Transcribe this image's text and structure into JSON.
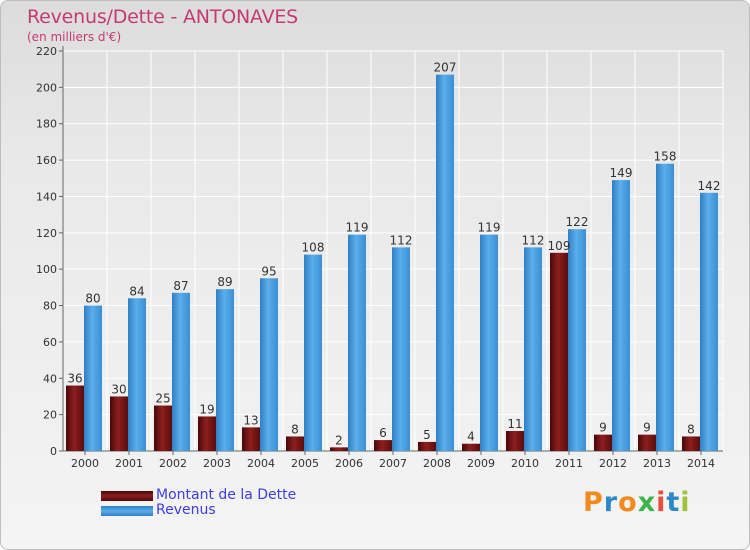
{
  "title": "Revenus/Dette - ANTONAVES",
  "subtitle": "(en milliers d'€)",
  "logo": {
    "text": "Proxiti",
    "colors": [
      "#f28a1e",
      "#2d88c9",
      "#f28a1e",
      "#3bb54a",
      "#e94e3c",
      "#2d88c9",
      "#9bc43a"
    ]
  },
  "chart_data": {
    "type": "bar",
    "categories": [
      "2000",
      "2001",
      "2002",
      "2003",
      "2004",
      "2005",
      "2006",
      "2007",
      "2008",
      "2009",
      "2010",
      "2011",
      "2012",
      "2013",
      "2014"
    ],
    "series": [
      {
        "name": "Montant de la Dette",
        "color": "#7a1515",
        "values": [
          36,
          30,
          25,
          19,
          13,
          8,
          2,
          6,
          5,
          4,
          11,
          109,
          9,
          9,
          8
        ]
      },
      {
        "name": "Revenus",
        "color": "#4aa0e6",
        "values": [
          80,
          84,
          87,
          89,
          95,
          108,
          119,
          112,
          207,
          119,
          112,
          122,
          149,
          158,
          142
        ]
      }
    ],
    "ylim": [
      0,
      220
    ],
    "yticks": [
      0,
      20,
      40,
      60,
      80,
      100,
      120,
      140,
      160,
      180,
      200,
      220
    ],
    "grid": true,
    "legend": "bottom-left"
  }
}
